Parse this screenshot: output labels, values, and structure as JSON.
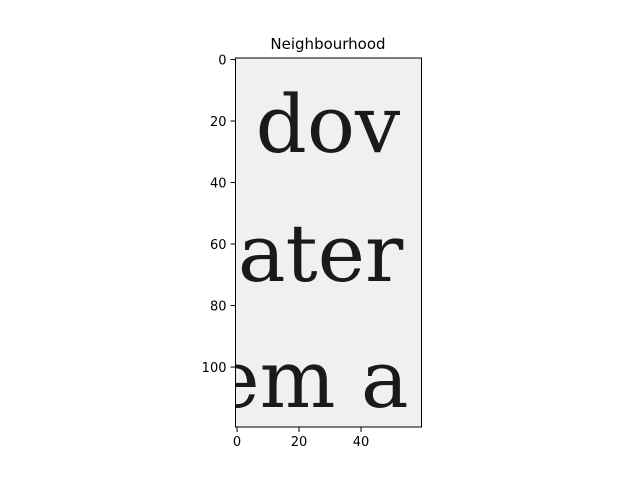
{
  "chart_data": {
    "type": "image",
    "title": "Neighbourhood",
    "xlabel": "",
    "ylabel": "",
    "xlim": [
      -0.5,
      59.5
    ],
    "ylim": [
      119.5,
      -0.5
    ],
    "x_ticks": [
      0,
      20,
      40
    ],
    "y_ticks": [
      0,
      20,
      40,
      60,
      80,
      100
    ],
    "image_size": {
      "cols": 60,
      "rows": 120
    },
    "grid": false,
    "colormap": "gray",
    "background_color": "#f0f0f0",
    "text_lines": [
      {
        "text": "dov",
        "x_start": 6,
        "baseline_row": 30
      },
      {
        "text": "later",
        "x_start": -8,
        "baseline_row": 72
      },
      {
        "text": "em a",
        "x_start": -8,
        "baseline_row": 113
      }
    ]
  }
}
